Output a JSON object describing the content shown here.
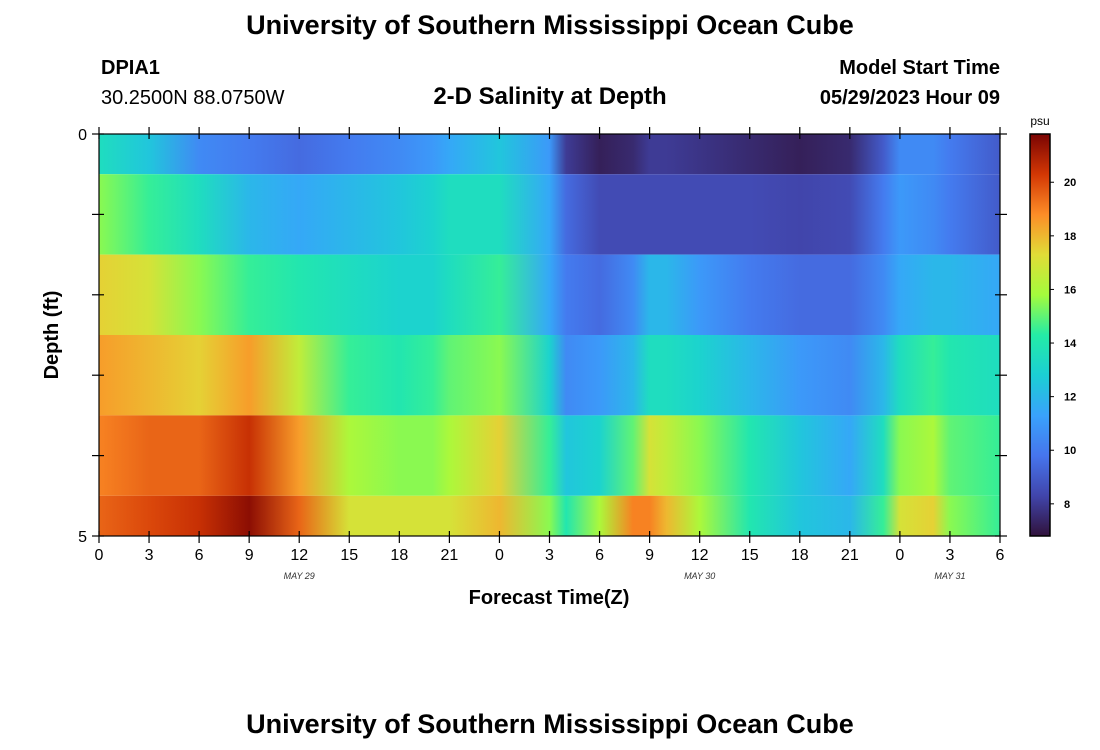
{
  "page_title": "University of Southern Mississippi Ocean Cube",
  "station": {
    "id": "DPIA1",
    "coords": "30.2500N  88.0750W"
  },
  "model_start": {
    "label": "Model Start Time",
    "value": "05/29/2023 Hour 09"
  },
  "chart_data": {
    "type": "heatmap",
    "title": "2-D Salinity at Depth",
    "xlabel": "Forecast Time(Z)",
    "ylabel": "Depth (ft)",
    "y_tick_labels": [
      "0",
      "5"
    ],
    "ylim": [
      0,
      5
    ],
    "x_tick_labels": [
      "0",
      "3",
      "6",
      "9",
      "12",
      "15",
      "18",
      "21",
      "0",
      "3",
      "6",
      "9",
      "12",
      "15",
      "18",
      "21",
      "0",
      "3",
      "6"
    ],
    "xlim_hours": [
      0,
      54
    ],
    "date_labels": [
      {
        "text": "MAY 29",
        "hour": 12
      },
      {
        "text": "MAY 30",
        "hour": 36
      },
      {
        "text": "MAY 31",
        "hour": 51
      }
    ],
    "colorbar": {
      "unit": "psu",
      "min": 6.8,
      "max": 21.8,
      "tick_labels": [
        "8",
        "10",
        "12",
        "14",
        "16",
        "18",
        "20"
      ],
      "tick_values": [
        8,
        10,
        12,
        14,
        16,
        18,
        20
      ]
    },
    "depth_layers": [
      {
        "top": 0.0,
        "bottom": 0.5
      },
      {
        "top": 0.5,
        "bottom": 1.5
      },
      {
        "top": 1.5,
        "bottom": 2.5
      },
      {
        "top": 2.5,
        "bottom": 3.5
      },
      {
        "top": 3.5,
        "bottom": 4.5
      },
      {
        "top": 4.5,
        "bottom": 5.0
      }
    ],
    "keyframe_hours": [
      0,
      3,
      6,
      9,
      12,
      15,
      18,
      20,
      21,
      24,
      27,
      28,
      30,
      32,
      33,
      34,
      36,
      39,
      42,
      45,
      47,
      48,
      50,
      51,
      54
    ],
    "salinity_psu": [
      [
        13.5,
        12.5,
        10.5,
        10.0,
        9.5,
        10.0,
        10.5,
        11.0,
        11.5,
        12.5,
        11.0,
        8.0,
        7.2,
        7.5,
        8.0,
        8.0,
        7.8,
        7.5,
        7.2,
        7.5,
        9.0,
        10.5,
        10.5,
        10.0,
        9.0
      ],
      [
        15.5,
        14.5,
        13.5,
        12.0,
        11.5,
        12.0,
        12.5,
        13.0,
        13.5,
        13.5,
        11.5,
        9.5,
        8.5,
        8.5,
        8.5,
        8.5,
        8.5,
        8.5,
        8.3,
        8.5,
        10.0,
        11.0,
        10.5,
        10.0,
        9.0
      ],
      [
        17.5,
        17.0,
        15.5,
        14.5,
        14.0,
        13.5,
        13.0,
        13.0,
        13.5,
        14.5,
        11.5,
        10.0,
        9.5,
        10.5,
        12.0,
        12.0,
        11.0,
        10.0,
        9.5,
        9.5,
        10.5,
        11.5,
        12.0,
        12.0,
        11.5
      ],
      [
        18.5,
        18.0,
        17.5,
        18.5,
        16.5,
        14.5,
        14.0,
        14.5,
        15.0,
        15.5,
        13.0,
        10.5,
        11.0,
        12.0,
        13.5,
        13.5,
        13.0,
        12.0,
        11.0,
        10.5,
        12.0,
        13.5,
        14.5,
        14.0,
        13.5
      ],
      [
        19.0,
        19.5,
        19.5,
        20.5,
        18.5,
        16.0,
        15.5,
        15.5,
        16.0,
        17.5,
        14.5,
        12.5,
        13.0,
        15.0,
        17.0,
        16.5,
        15.5,
        14.0,
        12.5,
        11.5,
        13.5,
        15.5,
        16.0,
        15.0,
        14.5
      ],
      [
        19.5,
        20.0,
        20.5,
        21.5,
        19.5,
        17.0,
        17.0,
        17.0,
        17.0,
        18.0,
        15.5,
        14.0,
        16.0,
        19.0,
        19.0,
        18.0,
        16.0,
        14.0,
        12.5,
        12.0,
        14.5,
        17.0,
        17.5,
        15.5,
        14.5
      ]
    ]
  }
}
